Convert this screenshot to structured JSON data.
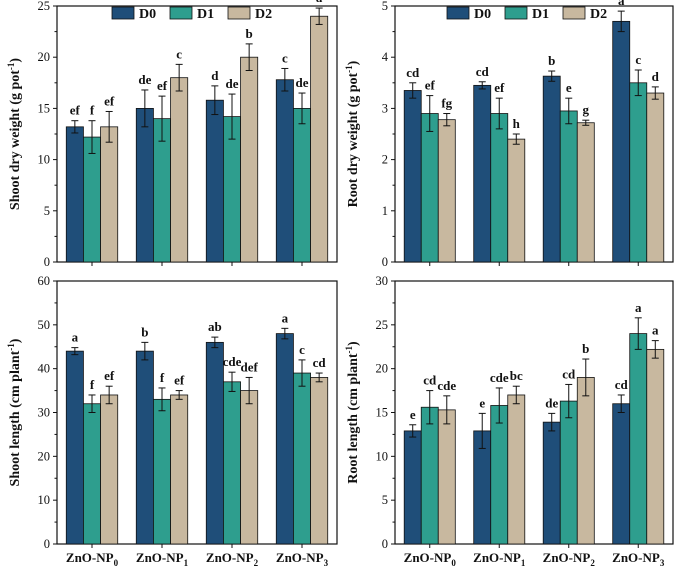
{
  "colors": {
    "D0": "#1f4e79",
    "D1": "#2e9e8e",
    "D2": "#c8b89f",
    "axis": "#111111"
  },
  "chart_data": [
    {
      "id": "shoot-dry-weight",
      "type": "bar",
      "ylabel_main": "Shoot dry weight (g pot",
      "ylabel_sup": "-1",
      "ylabel_end": ")",
      "ylim": [
        0,
        25
      ],
      "yticks": [
        0,
        5,
        10,
        15,
        20,
        25
      ],
      "categories": [
        {
          "base": "ZnO-NP",
          "sub": "0"
        },
        {
          "base": "ZnO-NP",
          "sub": "1"
        },
        {
          "base": "ZnO-NP",
          "sub": "2"
        },
        {
          "base": "ZnO-NP",
          "sub": "3"
        }
      ],
      "legend": [
        "D0",
        "D1",
        "D2"
      ],
      "series": [
        {
          "name": "D0",
          "values": [
            13.2,
            15.0,
            15.8,
            17.8
          ],
          "errors": [
            0.6,
            1.8,
            1.4,
            1.1
          ],
          "labels": [
            "ef",
            "de",
            "d",
            "c"
          ]
        },
        {
          "name": "D1",
          "values": [
            12.2,
            14.0,
            14.2,
            15.0
          ],
          "errors": [
            1.6,
            2.2,
            2.2,
            1.5
          ],
          "labels": [
            "f",
            "ef",
            "de",
            "de"
          ]
        },
        {
          "name": "D2",
          "values": [
            13.2,
            18.0,
            20.0,
            24.0
          ],
          "errors": [
            1.5,
            1.3,
            1.3,
            0.8
          ],
          "labels": [
            "ef",
            "c",
            "b",
            "a"
          ]
        }
      ]
    },
    {
      "id": "root-dry-weight",
      "type": "bar",
      "ylabel_main": "Root dry weight (g pot",
      "ylabel_sup": "-1",
      "ylabel_end": ")",
      "ylim": [
        0,
        5
      ],
      "yticks": [
        0,
        1,
        2,
        3,
        4,
        5
      ],
      "categories": [
        {
          "base": "ZnO-NP",
          "sub": "0"
        },
        {
          "base": "ZnO-NP",
          "sub": "1"
        },
        {
          "base": "ZnO-NP",
          "sub": "2"
        },
        {
          "base": "ZnO-NP",
          "sub": "3"
        }
      ],
      "legend": [
        "D0",
        "D1",
        "D2"
      ],
      "series": [
        {
          "name": "D0",
          "values": [
            3.35,
            3.45,
            3.63,
            4.7
          ],
          "errors": [
            0.15,
            0.07,
            0.1,
            0.2
          ],
          "labels": [
            "cd",
            "cd",
            "b",
            "a"
          ]
        },
        {
          "name": "D1",
          "values": [
            2.9,
            2.9,
            2.95,
            3.5
          ],
          "errors": [
            0.35,
            0.3,
            0.25,
            0.25
          ],
          "labels": [
            "ef",
            "ef",
            "e",
            "c"
          ]
        },
        {
          "name": "D2",
          "values": [
            2.78,
            2.4,
            2.72,
            3.3
          ],
          "errors": [
            0.12,
            0.1,
            0.05,
            0.12
          ],
          "labels": [
            "fg",
            "h",
            "g",
            "d"
          ]
        }
      ]
    },
    {
      "id": "shoot-length",
      "type": "bar",
      "ylabel_main": "Shoot length (cm plant",
      "ylabel_sup": "-1",
      "ylabel_end": ")",
      "ylim": [
        0,
        60
      ],
      "yticks": [
        0,
        10,
        20,
        30,
        40,
        50,
        60
      ],
      "categories": [
        {
          "base": "ZnO-NP",
          "sub": "0"
        },
        {
          "base": "ZnO-NP",
          "sub": "1"
        },
        {
          "base": "ZnO-NP",
          "sub": "2"
        },
        {
          "base": "ZnO-NP",
          "sub": "3"
        }
      ],
      "series": [
        {
          "name": "D0",
          "values": [
            44,
            44,
            46,
            48
          ],
          "errors": [
            0.8,
            2.0,
            1.2,
            1.2
          ],
          "labels": [
            "a",
            "b",
            "ab",
            "a"
          ]
        },
        {
          "name": "D1",
          "values": [
            32,
            33,
            37,
            39
          ],
          "errors": [
            2.0,
            2.6,
            2.2,
            3.0
          ],
          "labels": [
            "f",
            "f",
            "cde",
            "c"
          ]
        },
        {
          "name": "D2",
          "values": [
            34,
            34,
            35,
            38
          ],
          "errors": [
            2.0,
            1.0,
            3.0,
            1.0
          ],
          "labels": [
            "ef",
            "ef",
            "def",
            "cd"
          ]
        }
      ]
    },
    {
      "id": "root-length",
      "type": "bar",
      "ylabel_main": "Root length (cm plant",
      "ylabel_sup": "-1",
      "ylabel_end": ")",
      "ylim": [
        0,
        30
      ],
      "yticks": [
        0,
        5,
        10,
        15,
        20,
        25,
        30
      ],
      "categories": [
        {
          "base": "ZnO-NP",
          "sub": "0"
        },
        {
          "base": "ZnO-NP",
          "sub": "1"
        },
        {
          "base": "ZnO-NP",
          "sub": "2"
        },
        {
          "base": "ZnO-NP",
          "sub": "3"
        }
      ],
      "series": [
        {
          "name": "D0",
          "values": [
            12.9,
            12.9,
            13.9,
            16.0
          ],
          "errors": [
            0.7,
            2.0,
            1.0,
            1.0
          ],
          "labels": [
            "e",
            "e",
            "de",
            "cd"
          ]
        },
        {
          "name": "D1",
          "values": [
            15.6,
            15.8,
            16.3,
            24.0
          ],
          "errors": [
            1.9,
            2.0,
            1.9,
            1.8
          ],
          "labels": [
            "cd",
            "cde",
            "cd",
            "a"
          ]
        },
        {
          "name": "D2",
          "values": [
            15.3,
            17.0,
            19.0,
            22.2
          ],
          "errors": [
            1.6,
            1.0,
            2.1,
            1.0
          ],
          "labels": [
            "cde",
            "bc",
            "b",
            "a"
          ]
        }
      ]
    }
  ]
}
